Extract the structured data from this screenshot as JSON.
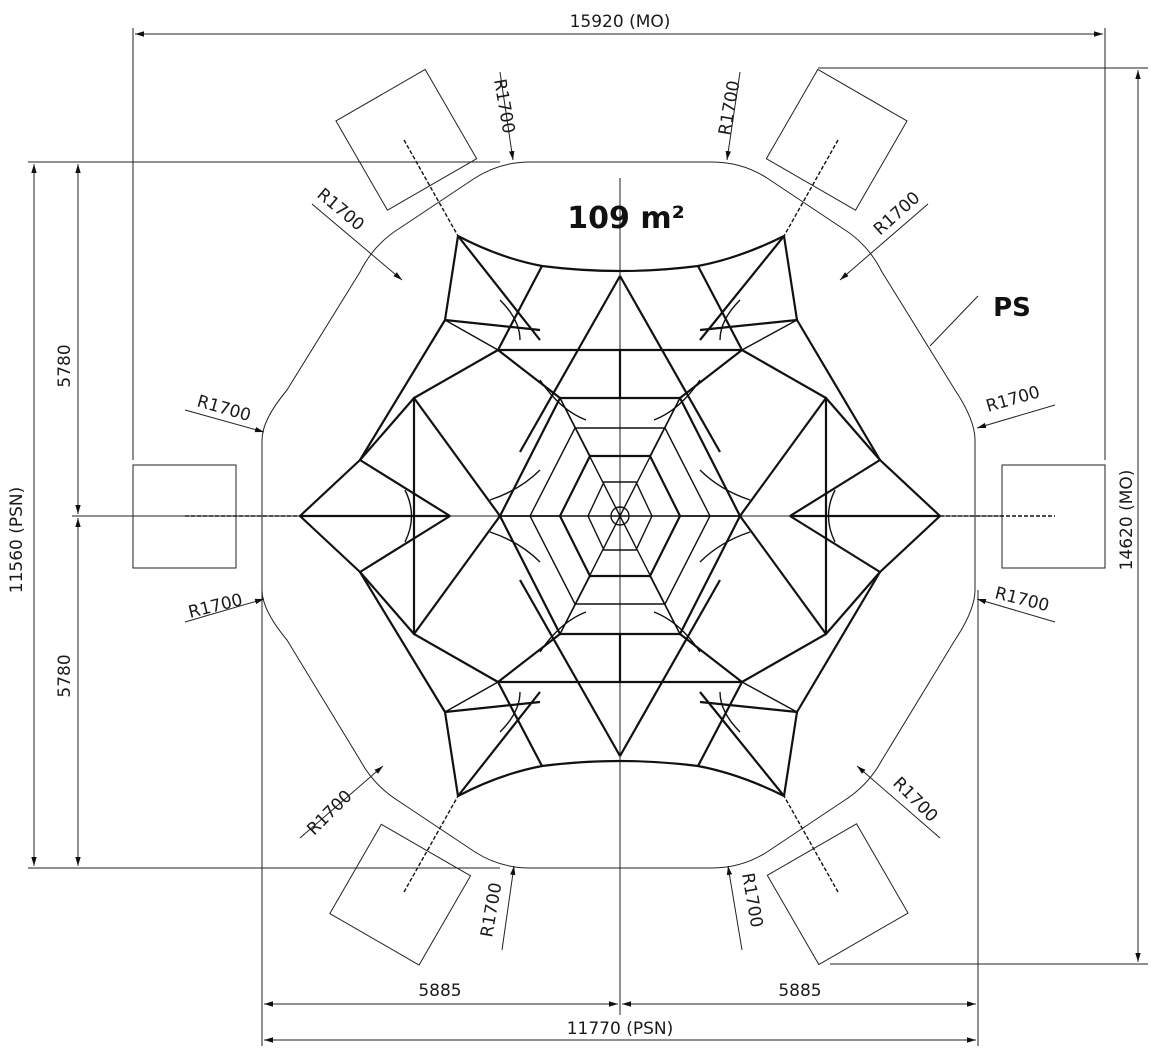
{
  "dimensions": {
    "overall_width_mo": "15920 (MO)",
    "overall_height_mo": "14620 (MO)",
    "psn_height": "11560 (PSN)",
    "psn_width": "11770  (PSN)",
    "upper_half_height": "5780",
    "lower_half_height": "5780",
    "left_half_width": "5885",
    "right_half_width": "5885"
  },
  "radius_label": "R1700",
  "area_label": "109 m²",
  "ps_label": "PS"
}
